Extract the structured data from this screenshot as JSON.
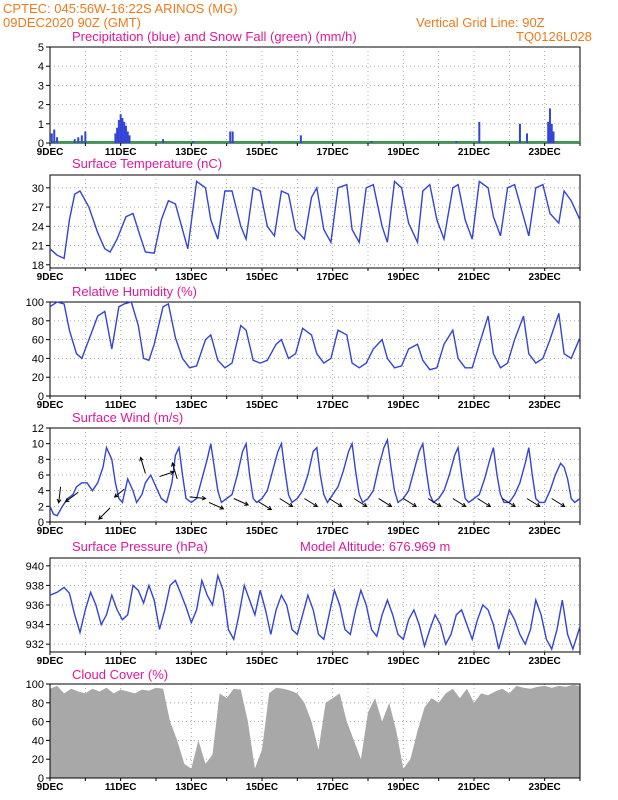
{
  "header": {
    "line1": "CPTEC:   045:56W-16:22S   ARINOS (MG)",
    "line2": "09DEC2020 90Z (GMT)",
    "grid_line": "Vertical Grid Line: 90Z",
    "code": "TQ0126L028"
  },
  "colors": {
    "header": "#f07a1a",
    "title": "#e0189c",
    "line": "#3344d8",
    "snow": "#2ea04a",
    "cloud": "#a8a8a8",
    "grid": "#999999"
  },
  "x_ticks": [
    "9DEC",
    "11DEC",
    "13DEC",
    "15DEC",
    "17DEC",
    "19DEC",
    "21DEC",
    "23DEC"
  ],
  "chart_data": [
    {
      "type": "bar",
      "id": "precip",
      "title": "Precipitation (blue) and Snow Fall (green) (mm/h)",
      "ylim": [
        0,
        5
      ],
      "yticks": [
        "0",
        "1",
        "2",
        "3",
        "4",
        "5"
      ],
      "x_range_days": [
        9,
        24
      ],
      "bars": [
        {
          "x": 9.05,
          "y": 0.5
        },
        {
          "x": 9.12,
          "y": 0.7
        },
        {
          "x": 9.2,
          "y": 0.3
        },
        {
          "x": 9.7,
          "y": 0.2
        },
        {
          "x": 9.8,
          "y": 0.3
        },
        {
          "x": 9.9,
          "y": 0.4
        },
        {
          "x": 10.0,
          "y": 0.6
        },
        {
          "x": 10.85,
          "y": 0.5
        },
        {
          "x": 10.9,
          "y": 0.8
        },
        {
          "x": 10.95,
          "y": 1.2
        },
        {
          "x": 11.0,
          "y": 1.5
        },
        {
          "x": 11.05,
          "y": 1.3
        },
        {
          "x": 11.1,
          "y": 1.1
        },
        {
          "x": 11.15,
          "y": 0.9
        },
        {
          "x": 11.2,
          "y": 0.6
        },
        {
          "x": 11.25,
          "y": 0.4
        },
        {
          "x": 12.2,
          "y": 0.2
        },
        {
          "x": 13.05,
          "y": 0.1
        },
        {
          "x": 14.1,
          "y": 0.6
        },
        {
          "x": 14.17,
          "y": 0.6
        },
        {
          "x": 15.2,
          "y": 0.1
        },
        {
          "x": 16.1,
          "y": 0.4
        },
        {
          "x": 18.1,
          "y": 0.1
        },
        {
          "x": 20.5,
          "y": 0.1
        },
        {
          "x": 21.15,
          "y": 1.1
        },
        {
          "x": 22.3,
          "y": 1.0
        },
        {
          "x": 22.5,
          "y": 0.5
        },
        {
          "x": 23.1,
          "y": 1.1
        },
        {
          "x": 23.15,
          "y": 1.8
        },
        {
          "x": 23.2,
          "y": 1.0
        },
        {
          "x": 23.25,
          "y": 0.6
        }
      ],
      "snow_values": 0
    },
    {
      "type": "line",
      "id": "temperature",
      "title": "Surface Temperature (nC)",
      "ylim": [
        17.5,
        32
      ],
      "yticks": [
        "18",
        "21",
        "24",
        "27",
        "30"
      ],
      "x_range_days": [
        9,
        24
      ],
      "x": [
        9.0,
        9.2,
        9.4,
        9.55,
        9.7,
        9.85,
        10.1,
        10.35,
        10.55,
        10.7,
        10.9,
        11.15,
        11.35,
        11.55,
        11.7,
        11.95,
        12.15,
        12.35,
        12.55,
        12.7,
        12.9,
        13.15,
        13.4,
        13.55,
        13.75,
        13.95,
        14.15,
        14.4,
        14.55,
        14.75,
        14.95,
        15.15,
        15.35,
        15.55,
        15.75,
        15.95,
        16.2,
        16.4,
        16.55,
        16.75,
        16.95,
        17.15,
        17.4,
        17.55,
        17.75,
        17.95,
        18.15,
        18.4,
        18.55,
        18.75,
        18.95,
        19.15,
        19.4,
        19.55,
        19.75,
        19.95,
        20.15,
        20.4,
        20.55,
        20.75,
        20.95,
        21.15,
        21.4,
        21.55,
        21.75,
        21.95,
        22.15,
        22.4,
        22.55,
        22.75,
        22.95,
        23.15,
        23.4,
        23.55,
        23.75,
        24.0
      ],
      "values": [
        20.5,
        19.5,
        19.0,
        25.0,
        29.0,
        29.5,
        27.0,
        23.0,
        20.5,
        20.0,
        22.0,
        25.5,
        26.0,
        22.5,
        20.0,
        19.8,
        25.0,
        28.0,
        27.5,
        24.5,
        20.5,
        31.0,
        30.0,
        25.0,
        22.0,
        29.5,
        29.5,
        24.0,
        22.0,
        30.0,
        29.5,
        24.0,
        22.5,
        29.5,
        29.0,
        23.5,
        22.0,
        28.5,
        30.0,
        23.5,
        21.5,
        30.0,
        30.5,
        23.5,
        21.5,
        30.0,
        30.5,
        24.0,
        21.5,
        31.0,
        30.0,
        24.5,
        21.5,
        29.5,
        30.5,
        25.0,
        22.0,
        30.0,
        30.5,
        25.0,
        22.0,
        31.0,
        30.0,
        25.5,
        22.5,
        30.0,
        30.5,
        25.5,
        22.5,
        30.0,
        30.5,
        26.0,
        24.5,
        29.5,
        28.0,
        25.0
      ]
    },
    {
      "type": "line",
      "id": "humidity",
      "title": "Relative Humidity (%)",
      "ylim": [
        0,
        100
      ],
      "yticks": [
        "0",
        "20",
        "40",
        "60",
        "80",
        "100"
      ],
      "x_range_days": [
        9,
        24
      ],
      "x": [
        9.0,
        9.2,
        9.4,
        9.55,
        9.75,
        9.9,
        10.1,
        10.35,
        10.55,
        10.75,
        10.95,
        11.1,
        11.3,
        11.5,
        11.65,
        11.8,
        11.95,
        12.2,
        12.35,
        12.55,
        12.75,
        12.95,
        13.15,
        13.4,
        13.55,
        13.75,
        13.95,
        14.15,
        14.4,
        14.55,
        14.75,
        14.95,
        15.15,
        15.4,
        15.55,
        15.75,
        15.95,
        16.15,
        16.4,
        16.55,
        16.75,
        16.95,
        17.15,
        17.4,
        17.55,
        17.75,
        17.95,
        18.15,
        18.4,
        18.55,
        18.75,
        18.95,
        19.15,
        19.4,
        19.55,
        19.75,
        19.95,
        20.15,
        20.4,
        20.55,
        20.75,
        20.95,
        21.15,
        21.4,
        21.55,
        21.75,
        21.95,
        22.15,
        22.4,
        22.55,
        22.75,
        22.95,
        23.15,
        23.4,
        23.55,
        23.75,
        24.0
      ],
      "values": [
        95,
        100,
        98,
        70,
        45,
        40,
        60,
        85,
        90,
        50,
        95,
        98,
        100,
        75,
        40,
        38,
        55,
        95,
        98,
        62,
        40,
        30,
        32,
        60,
        65,
        38,
        30,
        35,
        75,
        70,
        38,
        35,
        38,
        55,
        60,
        40,
        45,
        72,
        65,
        45,
        35,
        40,
        70,
        65,
        35,
        30,
        35,
        50,
        60,
        40,
        30,
        32,
        50,
        55,
        38,
        28,
        30,
        55,
        70,
        40,
        30,
        30,
        55,
        85,
        45,
        30,
        35,
        60,
        85,
        45,
        35,
        40,
        60,
        88,
        45,
        40,
        62
      ]
    },
    {
      "type": "line",
      "id": "wind",
      "title": "Surface Wind (m/s)",
      "ylim": [
        0,
        12
      ],
      "yticks": [
        "0",
        "2",
        "4",
        "6",
        "8",
        "10",
        "12"
      ],
      "x_range_days": [
        9,
        24
      ],
      "x": [
        9.0,
        9.1,
        9.2,
        9.35,
        9.5,
        9.65,
        9.75,
        9.9,
        10.05,
        10.2,
        10.35,
        10.5,
        10.6,
        10.75,
        10.85,
        10.95,
        11.05,
        11.2,
        11.35,
        11.45,
        11.6,
        11.7,
        11.85,
        12.0,
        12.15,
        12.3,
        12.45,
        12.55,
        12.65,
        12.75,
        12.85,
        13.0,
        13.15,
        13.3,
        13.45,
        13.55,
        13.65,
        13.75,
        13.85,
        14.0,
        14.15,
        14.3,
        14.45,
        14.55,
        14.65,
        14.75,
        14.85,
        15.0,
        15.15,
        15.3,
        15.45,
        15.55,
        15.65,
        15.75,
        15.85,
        16.0,
        16.15,
        16.3,
        16.45,
        16.55,
        16.65,
        16.75,
        16.85,
        17.0,
        17.15,
        17.3,
        17.45,
        17.55,
        17.65,
        17.75,
        17.85,
        18.0,
        18.15,
        18.3,
        18.45,
        18.55,
        18.65,
        18.75,
        18.85,
        19.0,
        19.15,
        19.3,
        19.45,
        19.55,
        19.65,
        19.75,
        19.85,
        20.0,
        20.15,
        20.3,
        20.45,
        20.55,
        20.65,
        20.75,
        20.85,
        21.0,
        21.15,
        21.3,
        21.45,
        21.55,
        21.65,
        21.75,
        21.85,
        22.0,
        22.15,
        22.3,
        22.45,
        22.55,
        22.65,
        22.75,
        22.85,
        23.0,
        23.15,
        23.3,
        23.45,
        23.55,
        23.65,
        23.75,
        23.85,
        24.0
      ],
      "values": [
        2.0,
        1.0,
        0.8,
        2.0,
        3.0,
        3.5,
        4.5,
        5.0,
        5.0,
        4.0,
        5.0,
        7.0,
        9.5,
        8.0,
        5.0,
        3.0,
        2.5,
        5.5,
        4.0,
        2.5,
        3.5,
        5.0,
        6.0,
        4.5,
        3.0,
        2.5,
        5.0,
        8.5,
        9.5,
        6.0,
        3.0,
        2.5,
        3.0,
        5.5,
        8.0,
        10.0,
        7.0,
        4.0,
        2.5,
        3.0,
        3.5,
        6.0,
        9.0,
        10.0,
        6.0,
        3.0,
        2.5,
        3.0,
        4.0,
        6.5,
        9.0,
        10.0,
        6.5,
        3.5,
        2.5,
        3.0,
        4.0,
        6.0,
        9.0,
        9.5,
        6.0,
        3.5,
        2.5,
        3.5,
        4.5,
        6.5,
        9.0,
        10.0,
        6.5,
        3.5,
        2.5,
        3.0,
        4.0,
        7.0,
        9.5,
        10.5,
        7.0,
        4.0,
        2.5,
        3.0,
        4.0,
        6.5,
        9.0,
        10.0,
        6.5,
        3.5,
        2.5,
        3.0,
        4.0,
        6.0,
        8.5,
        9.5,
        6.0,
        3.0,
        2.5,
        3.0,
        3.5,
        5.5,
        8.0,
        9.5,
        6.0,
        3.5,
        2.5,
        2.5,
        3.5,
        5.0,
        7.5,
        9.5,
        6.0,
        3.0,
        2.5,
        2.5,
        4.0,
        6.0,
        7.5,
        7.0,
        5.5,
        3.0,
        2.5,
        3.0
      ],
      "arrows": [
        {
          "x": 9.3,
          "y": 4.5,
          "dx": -0.12,
          "dy": 1.0
        },
        {
          "x": 9.8,
          "y": 3.8,
          "dx": -0.8,
          "dy": 0.6
        },
        {
          "x": 10.7,
          "y": 1.8,
          "dx": -0.7,
          "dy": 0.7
        },
        {
          "x": 11.1,
          "y": 4.2,
          "dx": -0.6,
          "dy": 0.5
        },
        {
          "x": 11.7,
          "y": 6.2,
          "dx": -0.3,
          "dy": -1.0
        },
        {
          "x": 12.1,
          "y": 5.8,
          "dx": 0.9,
          "dy": -0.3
        },
        {
          "x": 12.6,
          "y": 5.5,
          "dx": -0.3,
          "dy": -1.0
        },
        {
          "x": 12.95,
          "y": 3.2,
          "dx": 1.0,
          "dy": 0.1
        },
        {
          "x": 13.5,
          "y": 2.5,
          "dx": 0.9,
          "dy": 0.4
        },
        {
          "x": 14.2,
          "y": 3.0,
          "dx": 0.9,
          "dy": 0.4
        },
        {
          "x": 14.9,
          "y": 2.6,
          "dx": 0.8,
          "dy": 0.5
        },
        {
          "x": 15.5,
          "y": 3.0,
          "dx": 0.8,
          "dy": 0.5
        },
        {
          "x": 16.2,
          "y": 3.0,
          "dx": 0.8,
          "dy": 0.5
        },
        {
          "x": 16.9,
          "y": 3.0,
          "dx": 0.8,
          "dy": 0.5
        },
        {
          "x": 17.6,
          "y": 3.0,
          "dx": 0.8,
          "dy": 0.5
        },
        {
          "x": 18.3,
          "y": 3.0,
          "dx": 0.8,
          "dy": 0.5
        },
        {
          "x": 19.0,
          "y": 3.0,
          "dx": 0.8,
          "dy": 0.5
        },
        {
          "x": 19.7,
          "y": 3.0,
          "dx": 0.8,
          "dy": 0.5
        },
        {
          "x": 20.4,
          "y": 3.0,
          "dx": 0.8,
          "dy": 0.5
        },
        {
          "x": 21.1,
          "y": 3.0,
          "dx": 0.8,
          "dy": 0.5
        },
        {
          "x": 21.8,
          "y": 3.0,
          "dx": 0.8,
          "dy": 0.5
        },
        {
          "x": 22.5,
          "y": 3.0,
          "dx": 0.8,
          "dy": 0.5
        },
        {
          "x": 23.2,
          "y": 3.0,
          "dx": 0.8,
          "dy": 0.5
        }
      ]
    },
    {
      "type": "line",
      "id": "pressure",
      "title": "Surface Pressure (hPa)",
      "model_altitude": "Model Altitude: 676.969  m",
      "ylim": [
        931.2,
        940.8
      ],
      "yticks": [
        "932",
        "934",
        "936",
        "938",
        "940"
      ],
      "x_range_days": [
        9,
        24
      ],
      "x": [
        9.0,
        9.2,
        9.4,
        9.55,
        9.7,
        9.85,
        10.0,
        10.15,
        10.3,
        10.45,
        10.6,
        10.75,
        10.9,
        11.05,
        11.2,
        11.35,
        11.5,
        11.65,
        11.8,
        11.95,
        12.1,
        12.25,
        12.4,
        12.55,
        12.7,
        12.85,
        13.0,
        13.15,
        13.3,
        13.45,
        13.6,
        13.75,
        13.9,
        14.05,
        14.2,
        14.35,
        14.5,
        14.65,
        14.8,
        14.95,
        15.1,
        15.25,
        15.4,
        15.55,
        15.7,
        15.85,
        16.0,
        16.15,
        16.3,
        16.45,
        16.6,
        16.75,
        16.9,
        17.05,
        17.2,
        17.35,
        17.5,
        17.65,
        17.8,
        17.95,
        18.1,
        18.25,
        18.4,
        18.55,
        18.7,
        18.85,
        19.0,
        19.15,
        19.3,
        19.45,
        19.6,
        19.75,
        19.9,
        20.05,
        20.2,
        20.35,
        20.5,
        20.65,
        20.8,
        20.95,
        21.1,
        21.25,
        21.4,
        21.55,
        21.7,
        21.85,
        22.0,
        22.15,
        22.3,
        22.45,
        22.6,
        22.75,
        22.9,
        23.05,
        23.2,
        23.35,
        23.5,
        23.65,
        23.8,
        24.0
      ],
      "values": [
        937.0,
        937.3,
        937.8,
        937.2,
        935.0,
        933.2,
        935.5,
        937.3,
        936.0,
        934.0,
        935.0,
        937.0,
        935.5,
        934.5,
        935.0,
        938.0,
        937.5,
        936.2,
        938.0,
        936.5,
        933.5,
        935.5,
        938.0,
        938.5,
        937.2,
        935.8,
        934.2,
        935.5,
        938.5,
        937.0,
        936.0,
        939.0,
        937.5,
        933.5,
        932.5,
        935.0,
        938.0,
        936.5,
        935.0,
        937.5,
        935.5,
        933.0,
        935.5,
        937.0,
        936.0,
        933.5,
        933.0,
        935.0,
        937.0,
        935.5,
        933.0,
        932.5,
        935.0,
        937.5,
        936.0,
        933.5,
        933.0,
        935.5,
        937.5,
        936.0,
        933.5,
        932.8,
        935.0,
        936.5,
        935.0,
        933.0,
        932.5,
        934.5,
        935.5,
        934.0,
        931.8,
        933.5,
        935.0,
        934.0,
        932.0,
        933.0,
        935.0,
        935.5,
        934.0,
        932.5,
        934.5,
        936.0,
        935.5,
        934.0,
        931.5,
        933.5,
        935.5,
        934.5,
        933.0,
        932.0,
        933.5,
        936.5,
        935.0,
        932.5,
        931.5,
        933.5,
        936.5,
        933.0,
        931.5,
        933.8
      ]
    },
    {
      "type": "area",
      "id": "cloud",
      "title": "Cloud Cover (%)",
      "ylim": [
        0,
        100
      ],
      "yticks": [
        "0",
        "20",
        "40",
        "60",
        "80",
        "100"
      ],
      "x_range_days": [
        9,
        24
      ],
      "x": [
        9.0,
        9.2,
        9.4,
        9.6,
        9.8,
        10.0,
        10.2,
        10.4,
        10.6,
        10.8,
        11.0,
        11.2,
        11.4,
        11.6,
        11.8,
        12.0,
        12.2,
        12.4,
        12.6,
        12.8,
        13.0,
        13.2,
        13.4,
        13.6,
        13.8,
        14.0,
        14.2,
        14.4,
        14.6,
        14.8,
        15.0,
        15.2,
        15.4,
        15.6,
        15.8,
        16.0,
        16.2,
        16.4,
        16.6,
        16.8,
        17.0,
        17.2,
        17.4,
        17.6,
        17.8,
        18.0,
        18.2,
        18.4,
        18.6,
        18.8,
        19.0,
        19.2,
        19.4,
        19.6,
        19.8,
        20.0,
        20.2,
        20.4,
        20.6,
        20.8,
        21.0,
        21.2,
        21.4,
        21.6,
        21.8,
        22.0,
        22.2,
        22.4,
        22.6,
        22.8,
        23.0,
        23.2,
        23.4,
        23.6,
        23.8,
        24.0
      ],
      "values": [
        95,
        98,
        90,
        95,
        92,
        90,
        95,
        92,
        96,
        90,
        94,
        92,
        90,
        94,
        93,
        96,
        95,
        60,
        40,
        15,
        10,
        40,
        15,
        25,
        90,
        85,
        95,
        94,
        60,
        10,
        30,
        90,
        96,
        95,
        93,
        90,
        80,
        60,
        30,
        80,
        85,
        90,
        60,
        40,
        20,
        70,
        85,
        60,
        80,
        50,
        10,
        20,
        50,
        75,
        85,
        80,
        90,
        95,
        85,
        95,
        80,
        90,
        88,
        92,
        95,
        90,
        98,
        96,
        95,
        97,
        98,
        96,
        98,
        97,
        99,
        98
      ]
    }
  ]
}
